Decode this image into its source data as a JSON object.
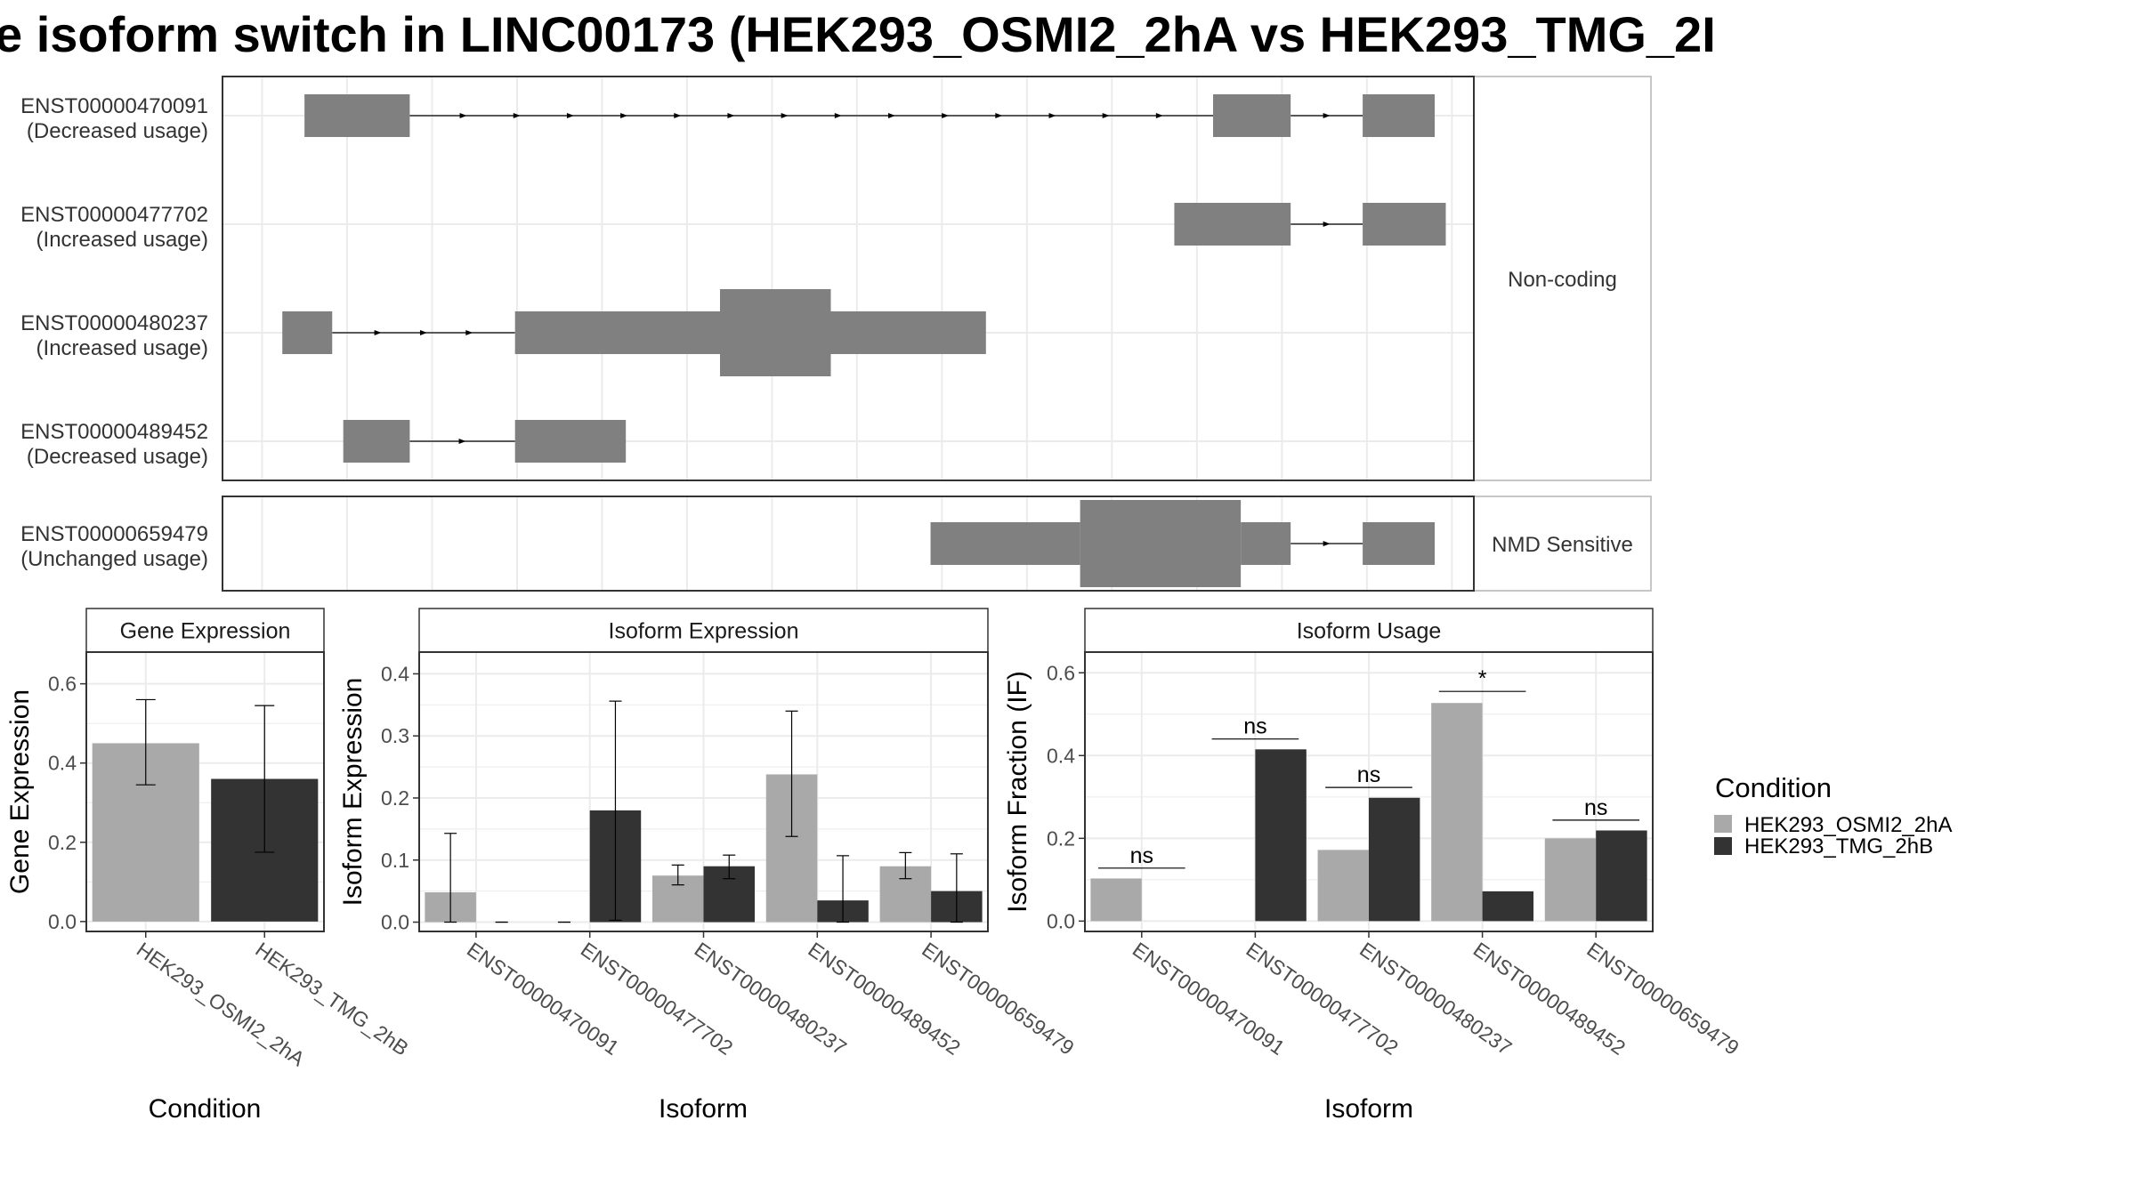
{
  "title": "e isoform switch in LINC00173 (HEK293_OSMI2_2hA vs HEK293_TMG_2I",
  "colors": {
    "exon": "#808080",
    "condA": "#a9a9a9",
    "condB": "#333333",
    "grid": "#ebebeb",
    "panel_border": "#333333",
    "strip_border": "#b3b3b3"
  },
  "structure": {
    "x_range": [
      0,
      100
    ],
    "groups": [
      {
        "name": "Non-coding",
        "isoforms": [
          {
            "id": "ENST00000470091",
            "usage": "(Decreased usage)",
            "exons": [
              {
                "s": 2.5,
                "e": 12,
                "coding": false
              },
              {
                "s": 84.5,
                "e": 91.5,
                "coding": false
              },
              {
                "s": 98,
                "e": 104.5,
                "coding": false
              }
            ]
          },
          {
            "id": "ENST00000477702",
            "usage": "(Increased usage)",
            "exons": [
              {
                "s": 81,
                "e": 91.5,
                "coding": false
              },
              {
                "s": 98,
                "e": 105.5,
                "coding": false
              }
            ]
          },
          {
            "id": "ENST00000480237",
            "usage": "(Increased usage)",
            "exons": [
              {
                "s": 0.5,
                "e": 5,
                "coding": false
              },
              {
                "s": 21.5,
                "e": 40,
                "coding": false
              },
              {
                "s": 40,
                "e": 50,
                "coding": true
              },
              {
                "s": 50,
                "e": 64,
                "coding": false
              }
            ]
          },
          {
            "id": "ENST00000489452",
            "usage": "(Decreased usage)",
            "exons": [
              {
                "s": 6,
                "e": 12,
                "coding": false
              },
              {
                "s": 21.5,
                "e": 31.5,
                "coding": false
              }
            ]
          }
        ]
      },
      {
        "name": "NMD Sensitive",
        "isoforms": [
          {
            "id": "ENST00000659479",
            "usage": "(Unchanged usage)",
            "exons": [
              {
                "s": 59,
                "e": 72.5,
                "coding": false
              },
              {
                "s": 72.5,
                "e": 87,
                "coding": true
              },
              {
                "s": 87,
                "e": 91.5,
                "coding": false
              },
              {
                "s": 98,
                "e": 104.5,
                "coding": false
              }
            ]
          }
        ]
      }
    ]
  },
  "chart_data": [
    {
      "type": "bar",
      "title": "Gene Expression",
      "xlabel": "Condition",
      "ylabel": "Gene Expression",
      "categories": [
        "HEK293_OSMI2_2hA",
        "HEK293_TMG_2hB"
      ],
      "values": [
        0.45,
        0.36
      ],
      "errors": [
        [
          0.345,
          0.56
        ],
        [
          0.175,
          0.545
        ]
      ],
      "ylim": [
        -0.025,
        0.68
      ],
      "yticks": [
        0.0,
        0.2,
        0.4,
        0.6
      ]
    },
    {
      "type": "bar",
      "title": "Isoform Expression",
      "xlabel": "Isoform",
      "ylabel": "Isoform Expression",
      "categories": [
        "ENST00000470091",
        "ENST00000477702",
        "ENST00000480237",
        "ENST00000489452",
        "ENST00000659479"
      ],
      "series": [
        {
          "name": "HEK293_OSMI2_2hA",
          "values": [
            0.048,
            0.0,
            0.075,
            0.238,
            0.09
          ],
          "errors": [
            [
              0.0,
              0.143
            ],
            [
              0.0,
              0.0
            ],
            [
              0.06,
              0.092
            ],
            [
              0.138,
              0.34
            ],
            [
              0.07,
              0.112
            ]
          ]
        },
        {
          "name": "HEK293_TMG_2hB",
          "values": [
            0.0,
            0.18,
            0.09,
            0.035,
            0.05
          ],
          "errors": [
            [
              0.0,
              0.0
            ],
            [
              0.003,
              0.356
            ],
            [
              0.07,
              0.108
            ],
            [
              0.0,
              0.107
            ],
            [
              0.0,
              0.11
            ]
          ]
        }
      ],
      "ylim": [
        -0.015,
        0.435
      ],
      "yticks": [
        0.0,
        0.1,
        0.2,
        0.3,
        0.4
      ]
    },
    {
      "type": "bar",
      "title": "Isoform Usage",
      "xlabel": "Isoform",
      "ylabel": "Isoform Fraction (IF)",
      "categories": [
        "ENST00000470091",
        "ENST00000477702",
        "ENST00000480237",
        "ENST00000489452",
        "ENST00000659479"
      ],
      "series": [
        {
          "name": "HEK293_OSMI2_2hA",
          "values": [
            0.103,
            0.0,
            0.172,
            0.527,
            0.2
          ]
        },
        {
          "name": "HEK293_TMG_2hB",
          "values": [
            0.0,
            0.415,
            0.298,
            0.072,
            0.219
          ]
        }
      ],
      "significance": [
        {
          "label": "ns",
          "y": 0.128
        },
        {
          "label": "ns",
          "y": 0.44
        },
        {
          "label": "ns",
          "y": 0.323
        },
        {
          "label": "*",
          "y": 0.555
        },
        {
          "label": "ns",
          "y": 0.244
        }
      ],
      "ylim": [
        -0.025,
        0.65
      ],
      "yticks": [
        0.0,
        0.2,
        0.4,
        0.6
      ]
    }
  ],
  "legend": {
    "title": "Condition",
    "items": [
      "HEK293_OSMI2_2hA",
      "HEK293_TMG_2hB"
    ]
  }
}
